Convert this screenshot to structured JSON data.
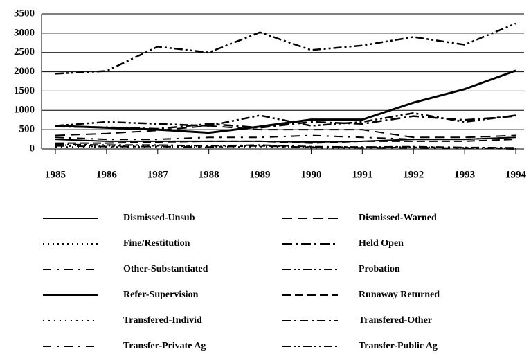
{
  "chart_data": {
    "type": "line",
    "x": [
      1985,
      1986,
      1987,
      1988,
      1989,
      1990,
      1991,
      1992,
      1993,
      1994
    ],
    "xlim": [
      1985,
      1994
    ],
    "xticks": [
      1985,
      1986,
      1987,
      1988,
      1989,
      1990,
      1991,
      1992,
      1993,
      1994
    ],
    "ylim": [
      0,
      3500
    ],
    "yticks": [
      0,
      500,
      1000,
      1500,
      2000,
      2500,
      3000,
      3500
    ],
    "grid": true,
    "series": [
      {
        "name": "Dismissed-Unsub",
        "color": "#000000",
        "values": [
          600,
          550,
          500,
          420,
          580,
          760,
          760,
          1200,
          1550,
          2030
        ]
      },
      {
        "name": "Dismissed-Warned",
        "color": "#000000",
        "values": [
          350,
          400,
          480,
          600,
          500,
          500,
          500,
          300,
          300,
          350
        ]
      },
      {
        "name": "Fine/Restitution",
        "color": "#000000",
        "values": [
          100,
          80,
          80,
          60,
          80,
          50,
          50,
          50,
          30,
          20
        ]
      },
      {
        "name": "Held Open",
        "color": "#000000",
        "values": [
          580,
          560,
          520,
          650,
          550,
          700,
          650,
          850,
          750,
          850
        ]
      },
      {
        "name": "Other-Substantiated",
        "color": "#000000",
        "values": [
          300,
          250,
          250,
          300,
          300,
          350,
          300,
          250,
          250,
          300
        ]
      },
      {
        "name": "Probation",
        "color": "#000000",
        "values": [
          600,
          700,
          650,
          600,
          870,
          600,
          700,
          930,
          700,
          870
        ]
      },
      {
        "name": "Refer-Supervision",
        "color": "#000000",
        "values": [
          250,
          200,
          200,
          200,
          200,
          180,
          200,
          250,
          250,
          300
        ]
      },
      {
        "name": "Runaway Returned",
        "color": "#000000",
        "values": [
          150,
          150,
          180,
          200,
          200,
          150,
          200,
          200,
          200,
          250
        ]
      },
      {
        "name": "Transfered-Individ",
        "color": "#000000",
        "values": [
          50,
          50,
          50,
          40,
          60,
          30,
          30,
          40,
          30,
          10
        ]
      },
      {
        "name": "Transfered-Other",
        "color": "#000000",
        "values": [
          120,
          100,
          100,
          80,
          100,
          60,
          50,
          60,
          40,
          30
        ]
      },
      {
        "name": "Transfer-Private Ag",
        "color": "#000000",
        "values": [
          80,
          60,
          60,
          50,
          80,
          40,
          30,
          30,
          20,
          0
        ]
      },
      {
        "name": "Transfer-Public Ag",
        "color": "#000000",
        "values": [
          1950,
          2020,
          2650,
          2500,
          3020,
          2560,
          2680,
          2900,
          2700,
          3250
        ]
      }
    ]
  }
}
